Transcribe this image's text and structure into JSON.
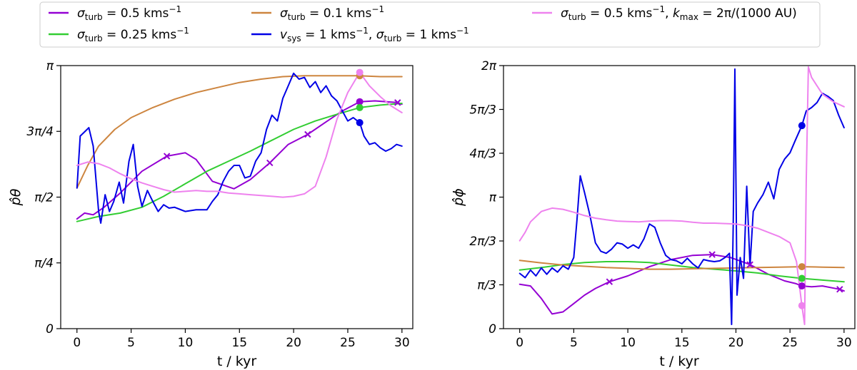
{
  "chart_data": [
    {
      "type": "line",
      "xlabel": "t / kyr",
      "ylabel": "p̂θ",
      "xlim": [
        -1.5,
        31.0
      ],
      "ylim": [
        0,
        3.14159
      ],
      "xticks": [
        0,
        5,
        10,
        15,
        20,
        25,
        30
      ],
      "xtick_labels": [
        "0",
        "5",
        "10",
        "15",
        "20",
        "25",
        "30"
      ],
      "yticks": [
        0,
        0.7854,
        1.5708,
        2.3562,
        3.14159
      ],
      "ytick_labels": [
        "0",
        "π/4",
        "π/2",
        "3π/4",
        "π"
      ],
      "series": [
        {
          "key": "s05",
          "x": [
            0,
            0.7,
            1.5,
            2.5,
            4,
            6,
            8.3,
            10,
            11,
            12.5,
            14.5,
            16,
            17.8,
            19.5,
            21.3,
            23,
            24.5,
            26.1,
            27.5,
            29.6,
            30
          ],
          "y": [
            1.31,
            1.38,
            1.36,
            1.45,
            1.62,
            1.88,
            2.06,
            2.1,
            2.02,
            1.76,
            1.67,
            1.78,
            1.98,
            2.2,
            2.32,
            2.47,
            2.6,
            2.71,
            2.72,
            2.7,
            2.68
          ],
          "markers": [
            {
              "x": 8.3,
              "y": 2.06,
              "kind": "x"
            },
            {
              "x": 17.8,
              "y": 1.98,
              "kind": "x"
            },
            {
              "x": 21.3,
              "y": 2.32,
              "kind": "x"
            },
            {
              "x": 29.6,
              "y": 2.7,
              "kind": "x"
            },
            {
              "x": 26.1,
              "y": 2.71,
              "kind": "dot"
            }
          ]
        },
        {
          "key": "s025",
          "x": [
            0,
            2,
            4,
            6,
            8,
            10,
            12,
            14,
            16,
            18,
            20,
            22,
            24,
            26.1,
            28,
            30
          ],
          "y": [
            1.28,
            1.34,
            1.38,
            1.45,
            1.58,
            1.73,
            1.88,
            2.0,
            2.12,
            2.25,
            2.38,
            2.48,
            2.56,
            2.64,
            2.67,
            2.69
          ],
          "markers": [
            {
              "x": 26.1,
              "y": 2.64,
              "kind": "dot"
            }
          ]
        },
        {
          "key": "s01",
          "x": [
            0,
            1,
            2,
            3.5,
            5,
            7,
            9,
            11,
            13,
            15,
            17,
            19,
            21,
            23,
            25,
            26.1,
            28,
            30
          ],
          "y": [
            1.68,
            1.95,
            2.18,
            2.38,
            2.52,
            2.64,
            2.74,
            2.82,
            2.88,
            2.94,
            2.98,
            3.01,
            3.02,
            3.02,
            3.02,
            3.02,
            3.01,
            3.01
          ],
          "markers": [
            {
              "x": 26.1,
              "y": 3.02,
              "kind": "dot"
            }
          ]
        },
        {
          "key": "vsys",
          "x": [
            0,
            0.3,
            0.7,
            1.1,
            1.5,
            2.0,
            2.2,
            2.6,
            3.0,
            3.4,
            3.9,
            4.3,
            4.8,
            5.2,
            5.6,
            6.0,
            6.5,
            7.0,
            7.5,
            8.0,
            8.5,
            9.0,
            10.0,
            11.0,
            12.0,
            12.5,
            13.0,
            13.5,
            14.0,
            14.5,
            15.0,
            15.5,
            16.0,
            16.5,
            17.0,
            17.5,
            18.0,
            18.5,
            19.0,
            19.5,
            20.0,
            20.5,
            21.0,
            21.5,
            22.0,
            22.5,
            23.0,
            23.5,
            24.0,
            24.5,
            25.0,
            25.5,
            26.1,
            26.5,
            27.0,
            27.5,
            28.0,
            28.5,
            29.0,
            29.5,
            30.0
          ],
          "y": [
            1.68,
            2.3,
            2.35,
            2.4,
            2.18,
            1.4,
            1.26,
            1.6,
            1.4,
            1.52,
            1.75,
            1.5,
            2.0,
            2.2,
            1.7,
            1.46,
            1.65,
            1.52,
            1.4,
            1.48,
            1.44,
            1.45,
            1.4,
            1.42,
            1.42,
            1.52,
            1.6,
            1.76,
            1.88,
            1.95,
            1.95,
            1.8,
            1.82,
            2.0,
            2.1,
            2.38,
            2.55,
            2.48,
            2.75,
            2.9,
            3.05,
            2.98,
            3.0,
            2.88,
            2.95,
            2.82,
            2.9,
            2.78,
            2.72,
            2.6,
            2.48,
            2.52,
            2.46,
            2.3,
            2.2,
            2.22,
            2.16,
            2.12,
            2.15,
            2.2,
            2.18
          ],
          "markers": [
            {
              "x": 26.1,
              "y": 2.46,
              "kind": "dot"
            }
          ]
        },
        {
          "key": "kmax",
          "x": [
            0,
            1,
            2,
            3,
            4,
            5,
            6,
            7,
            8,
            9,
            10,
            11,
            12,
            13,
            14,
            15,
            16,
            17,
            18,
            19,
            20,
            21,
            22,
            23,
            24,
            25,
            26.1,
            27,
            28,
            29,
            30
          ],
          "y": [
            1.95,
            1.99,
            1.97,
            1.92,
            1.85,
            1.79,
            1.74,
            1.7,
            1.66,
            1.63,
            1.64,
            1.65,
            1.64,
            1.64,
            1.62,
            1.61,
            1.6,
            1.59,
            1.58,
            1.57,
            1.58,
            1.61,
            1.7,
            2.05,
            2.5,
            2.82,
            3.06,
            2.9,
            2.77,
            2.66,
            2.58
          ],
          "markers": [
            {
              "x": 26.1,
              "y": 3.06,
              "kind": "dot"
            }
          ]
        }
      ]
    },
    {
      "type": "line",
      "xlabel": "t / kyr",
      "ylabel": "p̂ϕ",
      "xlim": [
        -1.5,
        31.0
      ],
      "ylim": [
        0,
        6.28318
      ],
      "xticks": [
        0,
        5,
        10,
        15,
        20,
        25,
        30
      ],
      "xtick_labels": [
        "0",
        "5",
        "10",
        "15",
        "20",
        "25",
        "30"
      ],
      "yticks": [
        0,
        1.0472,
        2.0944,
        3.14159,
        4.18879,
        5.23599,
        6.28318
      ],
      "ytick_labels": [
        "0",
        "π/3",
        "2π/3",
        "π",
        "4π/3",
        "5π/3",
        "2π"
      ],
      "series": [
        {
          "key": "s05",
          "x": [
            0,
            1,
            2,
            3,
            4,
            5,
            6,
            7,
            8.3,
            10,
            12,
            14,
            16,
            17.8,
            19.5,
            21.3,
            23,
            24.5,
            25.5,
            26.1,
            27,
            28,
            29.6,
            30
          ],
          "y": [
            1.06,
            1.02,
            0.72,
            0.35,
            0.4,
            0.6,
            0.8,
            0.96,
            1.12,
            1.26,
            1.48,
            1.65,
            1.75,
            1.77,
            1.7,
            1.53,
            1.3,
            1.14,
            1.08,
            1.02,
            1.0,
            1.02,
            0.94,
            0.9
          ],
          "markers": [
            {
              "x": 8.3,
              "y": 1.12,
              "kind": "x"
            },
            {
              "x": 17.8,
              "y": 1.77,
              "kind": "x"
            },
            {
              "x": 21.3,
              "y": 1.53,
              "kind": "x"
            },
            {
              "x": 29.6,
              "y": 0.94,
              "kind": "x"
            },
            {
              "x": 26.1,
              "y": 1.02,
              "kind": "dot"
            }
          ]
        },
        {
          "key": "s025",
          "x": [
            0,
            2,
            4,
            6,
            8,
            10,
            12,
            14,
            16,
            18,
            20,
            22,
            24,
            26.1,
            28,
            30
          ],
          "y": [
            1.4,
            1.46,
            1.53,
            1.58,
            1.6,
            1.6,
            1.58,
            1.52,
            1.46,
            1.42,
            1.38,
            1.33,
            1.26,
            1.2,
            1.16,
            1.12
          ],
          "markers": [
            {
              "x": 26.1,
              "y": 1.2,
              "kind": "dot"
            }
          ]
        },
        {
          "key": "s01",
          "x": [
            0,
            2,
            4,
            6,
            8,
            10,
            12,
            14,
            16,
            18,
            20,
            22,
            24,
            26.1,
            28,
            30
          ],
          "y": [
            1.63,
            1.57,
            1.52,
            1.49,
            1.46,
            1.44,
            1.42,
            1.42,
            1.43,
            1.44,
            1.45,
            1.46,
            1.47,
            1.48,
            1.47,
            1.46
          ],
          "markers": [
            {
              "x": 26.1,
              "y": 1.48,
              "kind": "dot"
            }
          ]
        },
        {
          "key": "vsys",
          "x": [
            0,
            0.5,
            1.0,
            1.5,
            2.0,
            2.5,
            3.0,
            3.5,
            4.0,
            4.5,
            5.0,
            5.3,
            5.6,
            6.0,
            6.5,
            7.0,
            7.5,
            8.0,
            8.5,
            9.0,
            9.5,
            10.0,
            10.5,
            11.0,
            11.5,
            12.0,
            12.5,
            13.0,
            13.5,
            14.0,
            14.5,
            15.0,
            15.5,
            16.0,
            16.5,
            17.0,
            17.5,
            18.0,
            18.5,
            19.0,
            19.4,
            19.6,
            19.75,
            19.9,
            20.1,
            20.4,
            20.7,
            21.0,
            21.3,
            21.6,
            22.0,
            22.5,
            23.0,
            23.5,
            24.0,
            24.5,
            25.0,
            25.5,
            26.1,
            26.5,
            27.0,
            27.5,
            28.0,
            28.5,
            29.0,
            29.5,
            30.0
          ],
          "y": [
            1.32,
            1.22,
            1.4,
            1.26,
            1.45,
            1.3,
            1.45,
            1.35,
            1.5,
            1.42,
            1.7,
            2.6,
            3.65,
            3.25,
            2.7,
            2.05,
            1.85,
            1.8,
            1.9,
            2.05,
            2.02,
            1.92,
            2.0,
            1.92,
            2.15,
            2.5,
            2.42,
            2.05,
            1.75,
            1.65,
            1.62,
            1.55,
            1.68,
            1.55,
            1.45,
            1.65,
            1.62,
            1.6,
            1.62,
            1.7,
            1.8,
            0.1,
            2.5,
            6.2,
            0.8,
            1.7,
            1.2,
            3.4,
            1.5,
            2.8,
            3.0,
            3.2,
            3.5,
            3.1,
            3.8,
            4.05,
            4.2,
            4.5,
            4.85,
            5.2,
            5.28,
            5.4,
            5.62,
            5.55,
            5.45,
            5.1,
            4.8
          ],
          "markers": [
            {
              "x": 26.1,
              "y": 4.85,
              "kind": "dot"
            }
          ]
        },
        {
          "key": "kmax",
          "x": [
            0,
            0.5,
            1,
            2,
            3,
            4,
            5,
            6,
            7,
            8,
            9,
            10,
            11,
            12,
            13,
            14,
            15,
            16,
            17,
            18,
            19,
            20,
            21,
            22,
            23,
            24,
            25,
            25.6,
            26.1,
            26.35,
            26.5,
            26.7,
            27,
            28,
            29,
            30
          ],
          "y": [
            2.1,
            2.3,
            2.55,
            2.8,
            2.88,
            2.85,
            2.78,
            2.7,
            2.64,
            2.6,
            2.57,
            2.56,
            2.55,
            2.57,
            2.58,
            2.58,
            2.57,
            2.54,
            2.52,
            2.52,
            2.51,
            2.5,
            2.46,
            2.4,
            2.3,
            2.2,
            2.05,
            1.6,
            0.55,
            0.1,
            3.5,
            6.25,
            6.0,
            5.6,
            5.42,
            5.3
          ],
          "markers": [
            {
              "x": 26.1,
              "y": 0.55,
              "kind": "dot"
            }
          ]
        }
      ]
    }
  ],
  "legend": [
    {
      "key": "s05",
      "color": "#9400d3",
      "label": "σturb = 0.5 kms−1"
    },
    {
      "key": "s025",
      "color": "#32cd32",
      "label": "σturb = 0.25 kms−1"
    },
    {
      "key": "s01",
      "color": "#cd853f",
      "label": "σturb = 0.1 kms−1"
    },
    {
      "key": "vsys",
      "color": "#0000e6",
      "label": "vsys = 1 kms−1, σturb = 1 kms−1"
    },
    {
      "key": "kmax",
      "color": "#ee82ee",
      "label": "σturb = 0.5 kms−1, kmax = 2π/(1000 AU)"
    }
  ]
}
